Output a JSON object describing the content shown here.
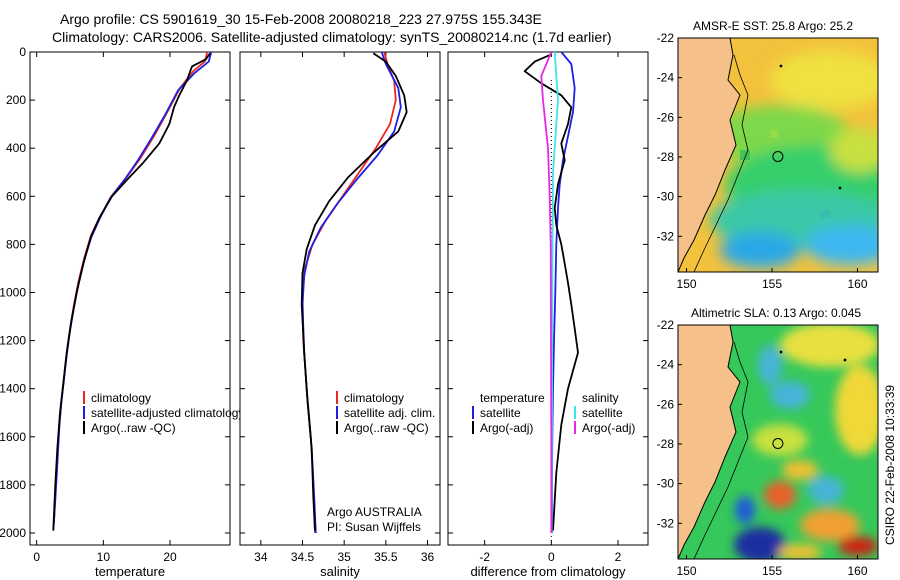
{
  "title_line1": "Argo profile: CS 5901619_30 15-Feb-2008 20080218_223 27.975S 155.343E",
  "title_line2": "Climatology: CARS2006. Satellite-adjusted climatology: synTS_20080214.nc (1.7d earlier)",
  "credit": "CSIRO 22-Feb-2008 10:33:39",
  "colors": {
    "red": "#e8281e",
    "blue": "#1e1ee6",
    "black": "#000000",
    "cyan": "#3ce6e6",
    "magenta": "#e628e6",
    "land": "#f5c08a",
    "coast": "#000000"
  },
  "chart_data": [
    {
      "type": "line",
      "xlabel": "temperature",
      "xlim": [
        -1,
        29
      ],
      "ylim": [
        2050,
        0
      ],
      "xticks": [
        0,
        10,
        20
      ],
      "yticks": [
        0,
        200,
        400,
        600,
        800,
        1000,
        1200,
        1400,
        1600,
        1800,
        2000
      ],
      "legend": [
        "climatology",
        "satellite-adjusted climatology",
        "Argo(..raw -QC)"
      ],
      "series": [
        {
          "name": "climatology",
          "color": "red",
          "points": [
            [
              25.6,
              0
            ],
            [
              25.2,
              40
            ],
            [
              23.5,
              80
            ],
            [
              21.5,
              150
            ],
            [
              19.6,
              250
            ],
            [
              17.6,
              350
            ],
            [
              15.6,
              440
            ],
            [
              13.5,
              520
            ],
            [
              11.2,
              600
            ],
            [
              9.6,
              680
            ],
            [
              8.2,
              760
            ],
            [
              7.2,
              850
            ],
            [
              6.3,
              950
            ],
            [
              5.6,
              1050
            ],
            [
              5.0,
              1150
            ],
            [
              4.5,
              1250
            ],
            [
              4.1,
              1350
            ],
            [
              3.7,
              1450
            ],
            [
              3.4,
              1550
            ],
            [
              3.2,
              1650
            ],
            [
              3.0,
              1750
            ],
            [
              2.8,
              1850
            ],
            [
              2.6,
              1950
            ],
            [
              2.5,
              1980
            ]
          ]
        },
        {
          "name": "satellite-adjusted climatology",
          "color": "blue",
          "points": [
            [
              26.2,
              0
            ],
            [
              25.8,
              40
            ],
            [
              23.6,
              90
            ],
            [
              21.2,
              160
            ],
            [
              19.3,
              260
            ],
            [
              17.2,
              360
            ],
            [
              15.2,
              450
            ],
            [
              13.2,
              530
            ],
            [
              11.0,
              610
            ],
            [
              9.5,
              690
            ],
            [
              8.2,
              770
            ],
            [
              7.2,
              860
            ],
            [
              6.3,
              960
            ],
            [
              5.6,
              1060
            ],
            [
              5.0,
              1160
            ],
            [
              4.5,
              1260
            ],
            [
              4.1,
              1360
            ],
            [
              3.7,
              1460
            ],
            [
              3.4,
              1560
            ],
            [
              3.2,
              1660
            ],
            [
              3.0,
              1760
            ],
            [
              2.8,
              1860
            ],
            [
              2.6,
              1950
            ],
            [
              2.5,
              1985
            ]
          ]
        },
        {
          "name": "Argo(..raw -QC)",
          "color": "black",
          "points": [
            [
              26.0,
              5
            ],
            [
              25.4,
              30
            ],
            [
              23.3,
              60
            ],
            [
              22.5,
              120
            ],
            [
              21.4,
              180
            ],
            [
              20.6,
              230
            ],
            [
              19.9,
              300
            ],
            [
              18.4,
              380
            ],
            [
              16.0,
              460
            ],
            [
              13.6,
              530
            ],
            [
              11.3,
              600
            ],
            [
              9.4,
              690
            ],
            [
              8.1,
              770
            ],
            [
              7.0,
              880
            ],
            [
              6.0,
              1000
            ],
            [
              5.2,
              1120
            ],
            [
              4.5,
              1250
            ],
            [
              4.0,
              1380
            ],
            [
              3.5,
              1500
            ],
            [
              3.1,
              1650
            ],
            [
              2.8,
              1800
            ],
            [
              2.6,
              1920
            ],
            [
              2.5,
              1990
            ]
          ]
        }
      ]
    },
    {
      "type": "line",
      "xlabel": "salinity",
      "xlim": [
        33.75,
        36.15
      ],
      "ylim": [
        2050,
        0
      ],
      "xticks": [
        34,
        34.5,
        35,
        35.5,
        36
      ],
      "legend": [
        "climatology",
        "satellite adj. clim.",
        "Argo(..raw -QC)"
      ],
      "annotation": [
        "Argo AUSTRALIA",
        "PI: Susan Wijffels"
      ],
      "series": [
        {
          "name": "climatology",
          "color": "red",
          "points": [
            [
              35.48,
              0
            ],
            [
              35.52,
              50
            ],
            [
              35.6,
              120
            ],
            [
              35.62,
              200
            ],
            [
              35.55,
              300
            ],
            [
              35.38,
              400
            ],
            [
              35.18,
              500
            ],
            [
              34.98,
              600
            ],
            [
              34.78,
              700
            ],
            [
              34.62,
              800
            ],
            [
              34.53,
              900
            ],
            [
              34.5,
              1000
            ],
            [
              34.51,
              1200
            ],
            [
              34.55,
              1400
            ],
            [
              34.6,
              1600
            ],
            [
              34.63,
              1800
            ],
            [
              34.65,
              2000
            ]
          ]
        },
        {
          "name": "satellite adj. clim.",
          "color": "blue",
          "points": [
            [
              35.45,
              0
            ],
            [
              35.5,
              50
            ],
            [
              35.65,
              150
            ],
            [
              35.68,
              230
            ],
            [
              35.6,
              330
            ],
            [
              35.4,
              430
            ],
            [
              35.15,
              530
            ],
            [
              34.92,
              630
            ],
            [
              34.72,
              730
            ],
            [
              34.58,
              830
            ],
            [
              34.52,
              930
            ],
            [
              34.5,
              1050
            ],
            [
              34.52,
              1250
            ],
            [
              34.56,
              1450
            ],
            [
              34.61,
              1650
            ],
            [
              34.64,
              1850
            ],
            [
              34.66,
              2000
            ]
          ]
        },
        {
          "name": "Argo(..raw -QC)",
          "color": "black",
          "points": [
            [
              35.35,
              5
            ],
            [
              35.5,
              40
            ],
            [
              35.62,
              100
            ],
            [
              35.72,
              180
            ],
            [
              35.75,
              250
            ],
            [
              35.65,
              330
            ],
            [
              35.35,
              420
            ],
            [
              35.05,
              520
            ],
            [
              34.82,
              620
            ],
            [
              34.65,
              720
            ],
            [
              34.55,
              820
            ],
            [
              34.5,
              920
            ],
            [
              34.49,
              1050
            ],
            [
              34.52,
              1250
            ],
            [
              34.56,
              1450
            ],
            [
              34.61,
              1650
            ],
            [
              34.63,
              1850
            ],
            [
              34.65,
              1990
            ]
          ]
        }
      ]
    },
    {
      "type": "line",
      "xlabel": "difference from climatology",
      "xlim": [
        -3.1,
        2.9
      ],
      "ylim": [
        2050,
        0
      ],
      "xticks": [
        -2,
        0,
        2
      ],
      "legend": [
        "temperature",
        "satellite",
        "Argo(-adj)",
        "salinity",
        "satellite",
        "Argo(-adj)"
      ],
      "series": [
        {
          "name": "temperature satellite",
          "color": "blue",
          "points": [
            [
              0.3,
              0
            ],
            [
              0.6,
              50
            ],
            [
              0.7,
              150
            ],
            [
              0.65,
              250
            ],
            [
              0.5,
              350
            ],
            [
              0.35,
              450
            ],
            [
              0.25,
              550
            ],
            [
              0.2,
              650
            ],
            [
              0.15,
              800
            ],
            [
              0.12,
              1000
            ],
            [
              0.08,
              1200
            ],
            [
              0.05,
              1400
            ],
            [
              0.03,
              1600
            ],
            [
              0.02,
              1800
            ],
            [
              0.02,
              2000
            ]
          ]
        },
        {
          "name": "temperature Argo(-adj)",
          "color": "black",
          "points": [
            [
              0.0,
              10
            ],
            [
              -0.5,
              40
            ],
            [
              -0.8,
              80
            ],
            [
              -0.3,
              130
            ],
            [
              0.3,
              180
            ],
            [
              0.6,
              230
            ],
            [
              0.5,
              300
            ],
            [
              0.3,
              380
            ],
            [
              0.4,
              450
            ],
            [
              0.2,
              550
            ],
            [
              0.1,
              650
            ],
            [
              0.15,
              720
            ],
            [
              0.3,
              800
            ],
            [
              0.4,
              880
            ],
            [
              0.5,
              960
            ],
            [
              0.6,
              1050
            ],
            [
              0.7,
              1150
            ],
            [
              0.8,
              1250
            ],
            [
              0.5,
              1400
            ],
            [
              0.3,
              1550
            ],
            [
              0.15,
              1750
            ],
            [
              0.05,
              1990
            ]
          ]
        },
        {
          "name": "salinity satellite",
          "color": "cyan",
          "points": [
            [
              0.1,
              0
            ],
            [
              0.15,
              100
            ],
            [
              0.2,
              200
            ],
            [
              0.15,
              300
            ],
            [
              0.1,
              400
            ],
            [
              0.05,
              500
            ],
            [
              0.04,
              700
            ],
            [
              0.03,
              1000
            ],
            [
              0.02,
              1500
            ],
            [
              0.01,
              2000
            ]
          ]
        },
        {
          "name": "salinity Argo(-adj)",
          "color": "magenta",
          "points": [
            [
              0.0,
              0
            ],
            [
              -0.15,
              50
            ],
            [
              -0.3,
              100
            ],
            [
              -0.25,
              200
            ],
            [
              -0.1,
              400
            ],
            [
              -0.05,
              600
            ],
            [
              -0.02,
              800
            ],
            [
              -0.01,
              1200
            ],
            [
              0.0,
              1600
            ],
            [
              0.0,
              2000
            ]
          ]
        }
      ]
    },
    {
      "type": "heatmap",
      "title": "AMSR-E SST: 25.8 Argo: 25.2",
      "xlim": [
        149.5,
        161.2
      ],
      "ylim": [
        -33.8,
        -22
      ],
      "xticks": [
        150,
        155,
        160
      ],
      "yticks": [
        -22,
        -24,
        -26,
        -28,
        -30,
        -32
      ],
      "float_position": [
        155.343,
        -27.975
      ]
    },
    {
      "type": "heatmap",
      "title": "Altimetric SLA: 0.13 Argo: 0.045",
      "xlim": [
        149.5,
        161.2
      ],
      "ylim": [
        -33.8,
        -22
      ],
      "xticks": [
        150,
        155,
        160
      ],
      "yticks": [
        -22,
        -24,
        -26,
        -28,
        -30,
        -32
      ],
      "float_position": [
        155.343,
        -27.975
      ]
    }
  ]
}
